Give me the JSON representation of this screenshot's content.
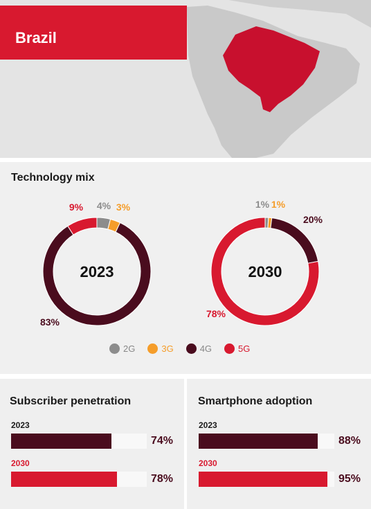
{
  "header": {
    "title": "Brazil"
  },
  "colors": {
    "2G": "#8c8c8c",
    "3G": "#f59d2a",
    "4G": "#4a0c1e",
    "5G": "#d8192f"
  },
  "chart_data": [
    {
      "type": "pie",
      "title": "Technology mix",
      "center_label": "2023",
      "slices": [
        {
          "name": "2G",
          "value": 4,
          "label": "4%"
        },
        {
          "name": "3G",
          "value": 3,
          "label": "3%"
        },
        {
          "name": "4G",
          "value": 83,
          "label": "83%"
        },
        {
          "name": "5G",
          "value": 9,
          "label": "9%"
        }
      ]
    },
    {
      "type": "pie",
      "center_label": "2030",
      "slices": [
        {
          "name": "2G",
          "value": 1,
          "label": "1%"
        },
        {
          "name": "3G",
          "value": 1,
          "label": "1%"
        },
        {
          "name": "4G",
          "value": 20,
          "label": "20%"
        },
        {
          "name": "5G",
          "value": 78,
          "label": "78%"
        }
      ]
    },
    {
      "type": "bar",
      "title": "Subscriber penetration",
      "categories": [
        "2023",
        "2030"
      ],
      "values": [
        74,
        78
      ],
      "labels": [
        "74%",
        "78%"
      ],
      "xlim": [
        0,
        100
      ]
    },
    {
      "type": "bar",
      "title": "Smartphone adoption",
      "categories": [
        "2023",
        "2030"
      ],
      "values": [
        88,
        95
      ],
      "labels": [
        "88%",
        "95%"
      ],
      "xlim": [
        0,
        100
      ]
    }
  ],
  "legend": [
    {
      "name": "2G",
      "label": "2G"
    },
    {
      "name": "3G",
      "label": "3G"
    },
    {
      "name": "4G",
      "label": "4G"
    },
    {
      "name": "5G",
      "label": "5G"
    }
  ]
}
